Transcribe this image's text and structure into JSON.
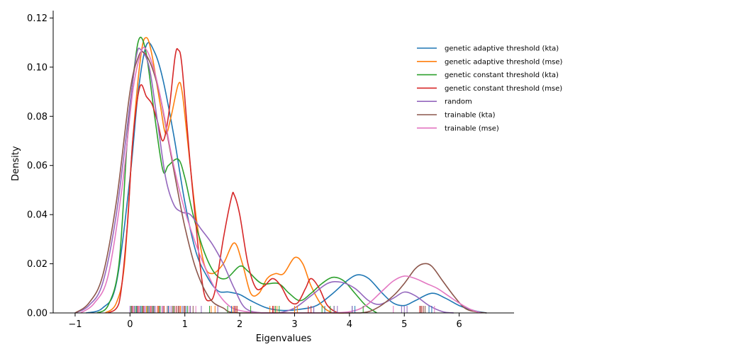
{
  "chart_data": {
    "type": "line",
    "title": "",
    "xlabel": "Eigenvalues",
    "ylabel": "Density",
    "xlim": [
      -1.4,
      7.0
    ],
    "ylim": [
      0.0,
      0.123
    ],
    "x_ticks": [
      -1,
      0,
      1,
      2,
      3,
      4,
      5,
      6
    ],
    "x_tick_labels": [
      "−1",
      "0",
      "1",
      "2",
      "3",
      "4",
      "5",
      "6"
    ],
    "y_ticks": [
      0.0,
      0.02,
      0.04,
      0.06,
      0.08,
      0.1,
      0.12
    ],
    "y_tick_labels": [
      "0.00",
      "0.02",
      "0.04",
      "0.06",
      "0.08",
      "0.10",
      "0.12"
    ],
    "grid": false,
    "legend_position": "top-right",
    "series": [
      {
        "name": "genetic adaptive threshold (kta)",
        "color": "#1f77b4",
        "points": [
          [
            -0.8,
            0.0
          ],
          [
            -0.5,
            0.002
          ],
          [
            -0.25,
            0.012
          ],
          [
            0.0,
            0.055
          ],
          [
            0.15,
            0.09
          ],
          [
            0.3,
            0.109
          ],
          [
            0.45,
            0.106
          ],
          [
            0.6,
            0.095
          ],
          [
            0.8,
            0.072
          ],
          [
            1.0,
            0.045
          ],
          [
            1.2,
            0.025
          ],
          [
            1.4,
            0.015
          ],
          [
            1.6,
            0.009
          ],
          [
            1.8,
            0.0085
          ],
          [
            2.0,
            0.0075
          ],
          [
            2.2,
            0.005
          ],
          [
            2.5,
            0.002
          ],
          [
            2.8,
            0.001
          ],
          [
            3.1,
            0.0015
          ],
          [
            3.4,
            0.003
          ],
          [
            3.7,
            0.008
          ],
          [
            3.95,
            0.013
          ],
          [
            4.15,
            0.0155
          ],
          [
            4.35,
            0.014
          ],
          [
            4.6,
            0.008
          ],
          [
            4.8,
            0.004
          ],
          [
            5.0,
            0.003
          ],
          [
            5.2,
            0.005
          ],
          [
            5.5,
            0.008
          ],
          [
            5.75,
            0.006
          ],
          [
            6.0,
            0.003
          ],
          [
            6.3,
            0.0008
          ],
          [
            6.5,
            0.0
          ]
        ]
      },
      {
        "name": "genetic adaptive threshold (mse)",
        "color": "#ff7f0e",
        "points": [
          [
            -0.45,
            0.0
          ],
          [
            -0.25,
            0.004
          ],
          [
            -0.1,
            0.02
          ],
          [
            0.05,
            0.07
          ],
          [
            0.2,
            0.105
          ],
          [
            0.3,
            0.112
          ],
          [
            0.4,
            0.105
          ],
          [
            0.55,
            0.085
          ],
          [
            0.65,
            0.073
          ],
          [
            0.75,
            0.08
          ],
          [
            0.88,
            0.093
          ],
          [
            0.95,
            0.09
          ],
          [
            1.05,
            0.07
          ],
          [
            1.2,
            0.04
          ],
          [
            1.35,
            0.02
          ],
          [
            1.5,
            0.016
          ],
          [
            1.7,
            0.02
          ],
          [
            1.9,
            0.0285
          ],
          [
            2.05,
            0.02
          ],
          [
            2.2,
            0.008
          ],
          [
            2.35,
            0.008
          ],
          [
            2.5,
            0.014
          ],
          [
            2.65,
            0.016
          ],
          [
            2.8,
            0.016
          ],
          [
            3.0,
            0.0225
          ],
          [
            3.15,
            0.02
          ],
          [
            3.3,
            0.011
          ],
          [
            3.5,
            0.003
          ],
          [
            3.7,
            0.0
          ],
          [
            3.9,
            0.0
          ]
        ]
      },
      {
        "name": "genetic constant threshold (kta)",
        "color": "#2ca02c",
        "points": [
          [
            -0.6,
            0.0
          ],
          [
            -0.4,
            0.003
          ],
          [
            -0.2,
            0.02
          ],
          [
            -0.05,
            0.07
          ],
          [
            0.08,
            0.1
          ],
          [
            0.18,
            0.112
          ],
          [
            0.3,
            0.105
          ],
          [
            0.45,
            0.08
          ],
          [
            0.6,
            0.058
          ],
          [
            0.7,
            0.06
          ],
          [
            0.88,
            0.0625
          ],
          [
            1.0,
            0.055
          ],
          [
            1.15,
            0.04
          ],
          [
            1.35,
            0.025
          ],
          [
            1.55,
            0.016
          ],
          [
            1.75,
            0.014
          ],
          [
            2.0,
            0.019
          ],
          [
            2.15,
            0.017
          ],
          [
            2.4,
            0.012
          ],
          [
            2.7,
            0.012
          ],
          [
            2.9,
            0.008
          ],
          [
            3.1,
            0.005
          ],
          [
            3.3,
            0.008
          ],
          [
            3.5,
            0.012
          ],
          [
            3.7,
            0.0145
          ],
          [
            3.9,
            0.013
          ],
          [
            4.1,
            0.008
          ],
          [
            4.3,
            0.003
          ],
          [
            4.5,
            0.0
          ]
        ]
      },
      {
        "name": "genetic constant threshold (mse)",
        "color": "#d62728",
        "points": [
          [
            -0.4,
            0.0
          ],
          [
            -0.2,
            0.004
          ],
          [
            -0.05,
            0.035
          ],
          [
            0.05,
            0.07
          ],
          [
            0.18,
            0.092
          ],
          [
            0.3,
            0.088
          ],
          [
            0.4,
            0.085
          ],
          [
            0.5,
            0.078
          ],
          [
            0.6,
            0.07
          ],
          [
            0.7,
            0.08
          ],
          [
            0.82,
            0.104
          ],
          [
            0.88,
            0.107
          ],
          [
            0.95,
            0.1
          ],
          [
            1.1,
            0.06
          ],
          [
            1.25,
            0.025
          ],
          [
            1.35,
            0.008
          ],
          [
            1.45,
            0.005
          ],
          [
            1.55,
            0.009
          ],
          [
            1.7,
            0.03
          ],
          [
            1.85,
            0.047
          ],
          [
            1.9,
            0.048
          ],
          [
            2.0,
            0.04
          ],
          [
            2.15,
            0.02
          ],
          [
            2.3,
            0.01
          ],
          [
            2.45,
            0.011
          ],
          [
            2.6,
            0.014
          ],
          [
            2.75,
            0.011
          ],
          [
            2.9,
            0.005
          ],
          [
            3.05,
            0.004
          ],
          [
            3.2,
            0.01
          ],
          [
            3.3,
            0.014
          ],
          [
            3.45,
            0.01
          ],
          [
            3.6,
            0.003
          ],
          [
            3.8,
            0.0
          ],
          [
            4.0,
            0.0
          ]
        ]
      },
      {
        "name": "random",
        "color": "#9467bd",
        "points": [
          [
            -1.0,
            0.0
          ],
          [
            -0.75,
            0.003
          ],
          [
            -0.5,
            0.012
          ],
          [
            -0.25,
            0.04
          ],
          [
            0.0,
            0.085
          ],
          [
            0.12,
            0.105
          ],
          [
            0.2,
            0.107
          ],
          [
            0.35,
            0.1
          ],
          [
            0.5,
            0.078
          ],
          [
            0.65,
            0.055
          ],
          [
            0.8,
            0.044
          ],
          [
            0.95,
            0.041
          ],
          [
            1.1,
            0.04
          ],
          [
            1.3,
            0.034
          ],
          [
            1.5,
            0.028
          ],
          [
            1.7,
            0.02
          ],
          [
            1.9,
            0.01
          ],
          [
            2.1,
            0.002
          ],
          [
            2.4,
            0.0
          ],
          [
            2.7,
            0.0
          ],
          [
            3.0,
            0.002
          ],
          [
            3.3,
            0.007
          ],
          [
            3.6,
            0.012
          ],
          [
            3.85,
            0.0125
          ],
          [
            4.1,
            0.01
          ],
          [
            4.35,
            0.005
          ],
          [
            4.55,
            0.0035
          ],
          [
            4.8,
            0.006
          ],
          [
            5.0,
            0.0085
          ],
          [
            5.2,
            0.007
          ],
          [
            5.45,
            0.003
          ],
          [
            5.7,
            0.0005
          ],
          [
            5.9,
            0.0
          ]
        ]
      },
      {
        "name": "trainable (kta)",
        "color": "#8c564b",
        "points": [
          [
            -1.0,
            0.0
          ],
          [
            -0.75,
            0.004
          ],
          [
            -0.5,
            0.015
          ],
          [
            -0.25,
            0.045
          ],
          [
            0.0,
            0.09
          ],
          [
            0.15,
            0.104
          ],
          [
            0.25,
            0.106
          ],
          [
            0.4,
            0.1
          ],
          [
            0.55,
            0.088
          ],
          [
            0.7,
            0.07
          ],
          [
            0.85,
            0.052
          ],
          [
            1.0,
            0.035
          ],
          [
            1.2,
            0.018
          ],
          [
            1.45,
            0.006
          ],
          [
            1.7,
            0.002
          ],
          [
            2.0,
            0.0
          ],
          [
            3.5,
            0.0
          ],
          [
            4.2,
            0.0
          ],
          [
            4.5,
            0.002
          ],
          [
            4.8,
            0.007
          ],
          [
            5.0,
            0.012
          ],
          [
            5.2,
            0.018
          ],
          [
            5.35,
            0.02
          ],
          [
            5.5,
            0.019
          ],
          [
            5.7,
            0.013
          ],
          [
            5.9,
            0.007
          ],
          [
            6.1,
            0.002
          ],
          [
            6.3,
            0.0005
          ],
          [
            6.5,
            0.0
          ]
        ]
      },
      {
        "name": "trainable (mse)",
        "color": "#e377c2",
        "points": [
          [
            -0.9,
            0.0
          ],
          [
            -0.65,
            0.004
          ],
          [
            -0.4,
            0.015
          ],
          [
            -0.15,
            0.05
          ],
          [
            0.05,
            0.09
          ],
          [
            0.2,
            0.106
          ],
          [
            0.3,
            0.107
          ],
          [
            0.45,
            0.098
          ],
          [
            0.6,
            0.083
          ],
          [
            0.75,
            0.065
          ],
          [
            0.9,
            0.05
          ],
          [
            1.05,
            0.038
          ],
          [
            1.25,
            0.025
          ],
          [
            1.5,
            0.012
          ],
          [
            1.75,
            0.004
          ],
          [
            2.0,
            0.001
          ],
          [
            2.5,
            0.0
          ],
          [
            3.5,
            0.0
          ],
          [
            4.0,
            0.0005
          ],
          [
            4.3,
            0.003
          ],
          [
            4.6,
            0.009
          ],
          [
            4.8,
            0.013
          ],
          [
            5.0,
            0.015
          ],
          [
            5.2,
            0.014
          ],
          [
            5.4,
            0.012
          ],
          [
            5.6,
            0.01
          ],
          [
            5.8,
            0.007
          ],
          [
            6.0,
            0.004
          ],
          [
            6.2,
            0.0015
          ],
          [
            6.4,
            0.0
          ]
        ]
      }
    ],
    "rug": [
      {
        "series": 0,
        "x": [
          0.05,
          0.12,
          0.2,
          0.28,
          0.35,
          0.45,
          0.55,
          0.7,
          0.85,
          0.95,
          1.02,
          1.85,
          3.35,
          3.55,
          4.05,
          4.1,
          5.45,
          5.5
        ]
      },
      {
        "series": 1,
        "x": [
          0.08,
          0.18,
          0.3,
          0.4,
          0.52,
          0.62,
          0.82,
          0.92,
          1.1,
          1.48,
          1.55,
          1.88,
          1.92,
          2.55,
          2.68,
          3.0,
          3.05
        ]
      },
      {
        "series": 2,
        "x": [
          0.02,
          0.1,
          0.22,
          0.32,
          0.42,
          0.55,
          0.8,
          0.9,
          1.05,
          1.45,
          1.78,
          1.95,
          2.2,
          2.65,
          2.72,
          3.5,
          3.65,
          3.72,
          4.25
        ]
      },
      {
        "series": 3,
        "x": [
          0.05,
          0.15,
          0.25,
          0.38,
          0.5,
          0.62,
          0.78,
          0.85,
          0.9,
          1.0,
          1.92,
          1.95,
          2.6,
          2.62,
          3.25,
          3.3,
          5.28,
          5.32
        ]
      },
      {
        "series": 4,
        "x": [
          0.0,
          0.08,
          0.18,
          0.28,
          0.4,
          0.6,
          0.75,
          0.95,
          1.1,
          1.3,
          1.6,
          1.9,
          3.35,
          3.72,
          3.78,
          4.05,
          4.95,
          5.0,
          5.05
        ]
      },
      {
        "series": 5,
        "x": [
          0.03,
          0.13,
          0.23,
          0.33,
          0.43,
          0.53,
          0.68,
          0.78,
          0.88,
          0.98,
          1.15,
          5.3,
          5.35,
          5.38
        ]
      },
      {
        "series": 6,
        "x": [
          0.06,
          0.16,
          0.26,
          0.36,
          0.46,
          0.58,
          0.72,
          0.82,
          1.08,
          1.2,
          4.8,
          5.55
        ]
      }
    ]
  }
}
